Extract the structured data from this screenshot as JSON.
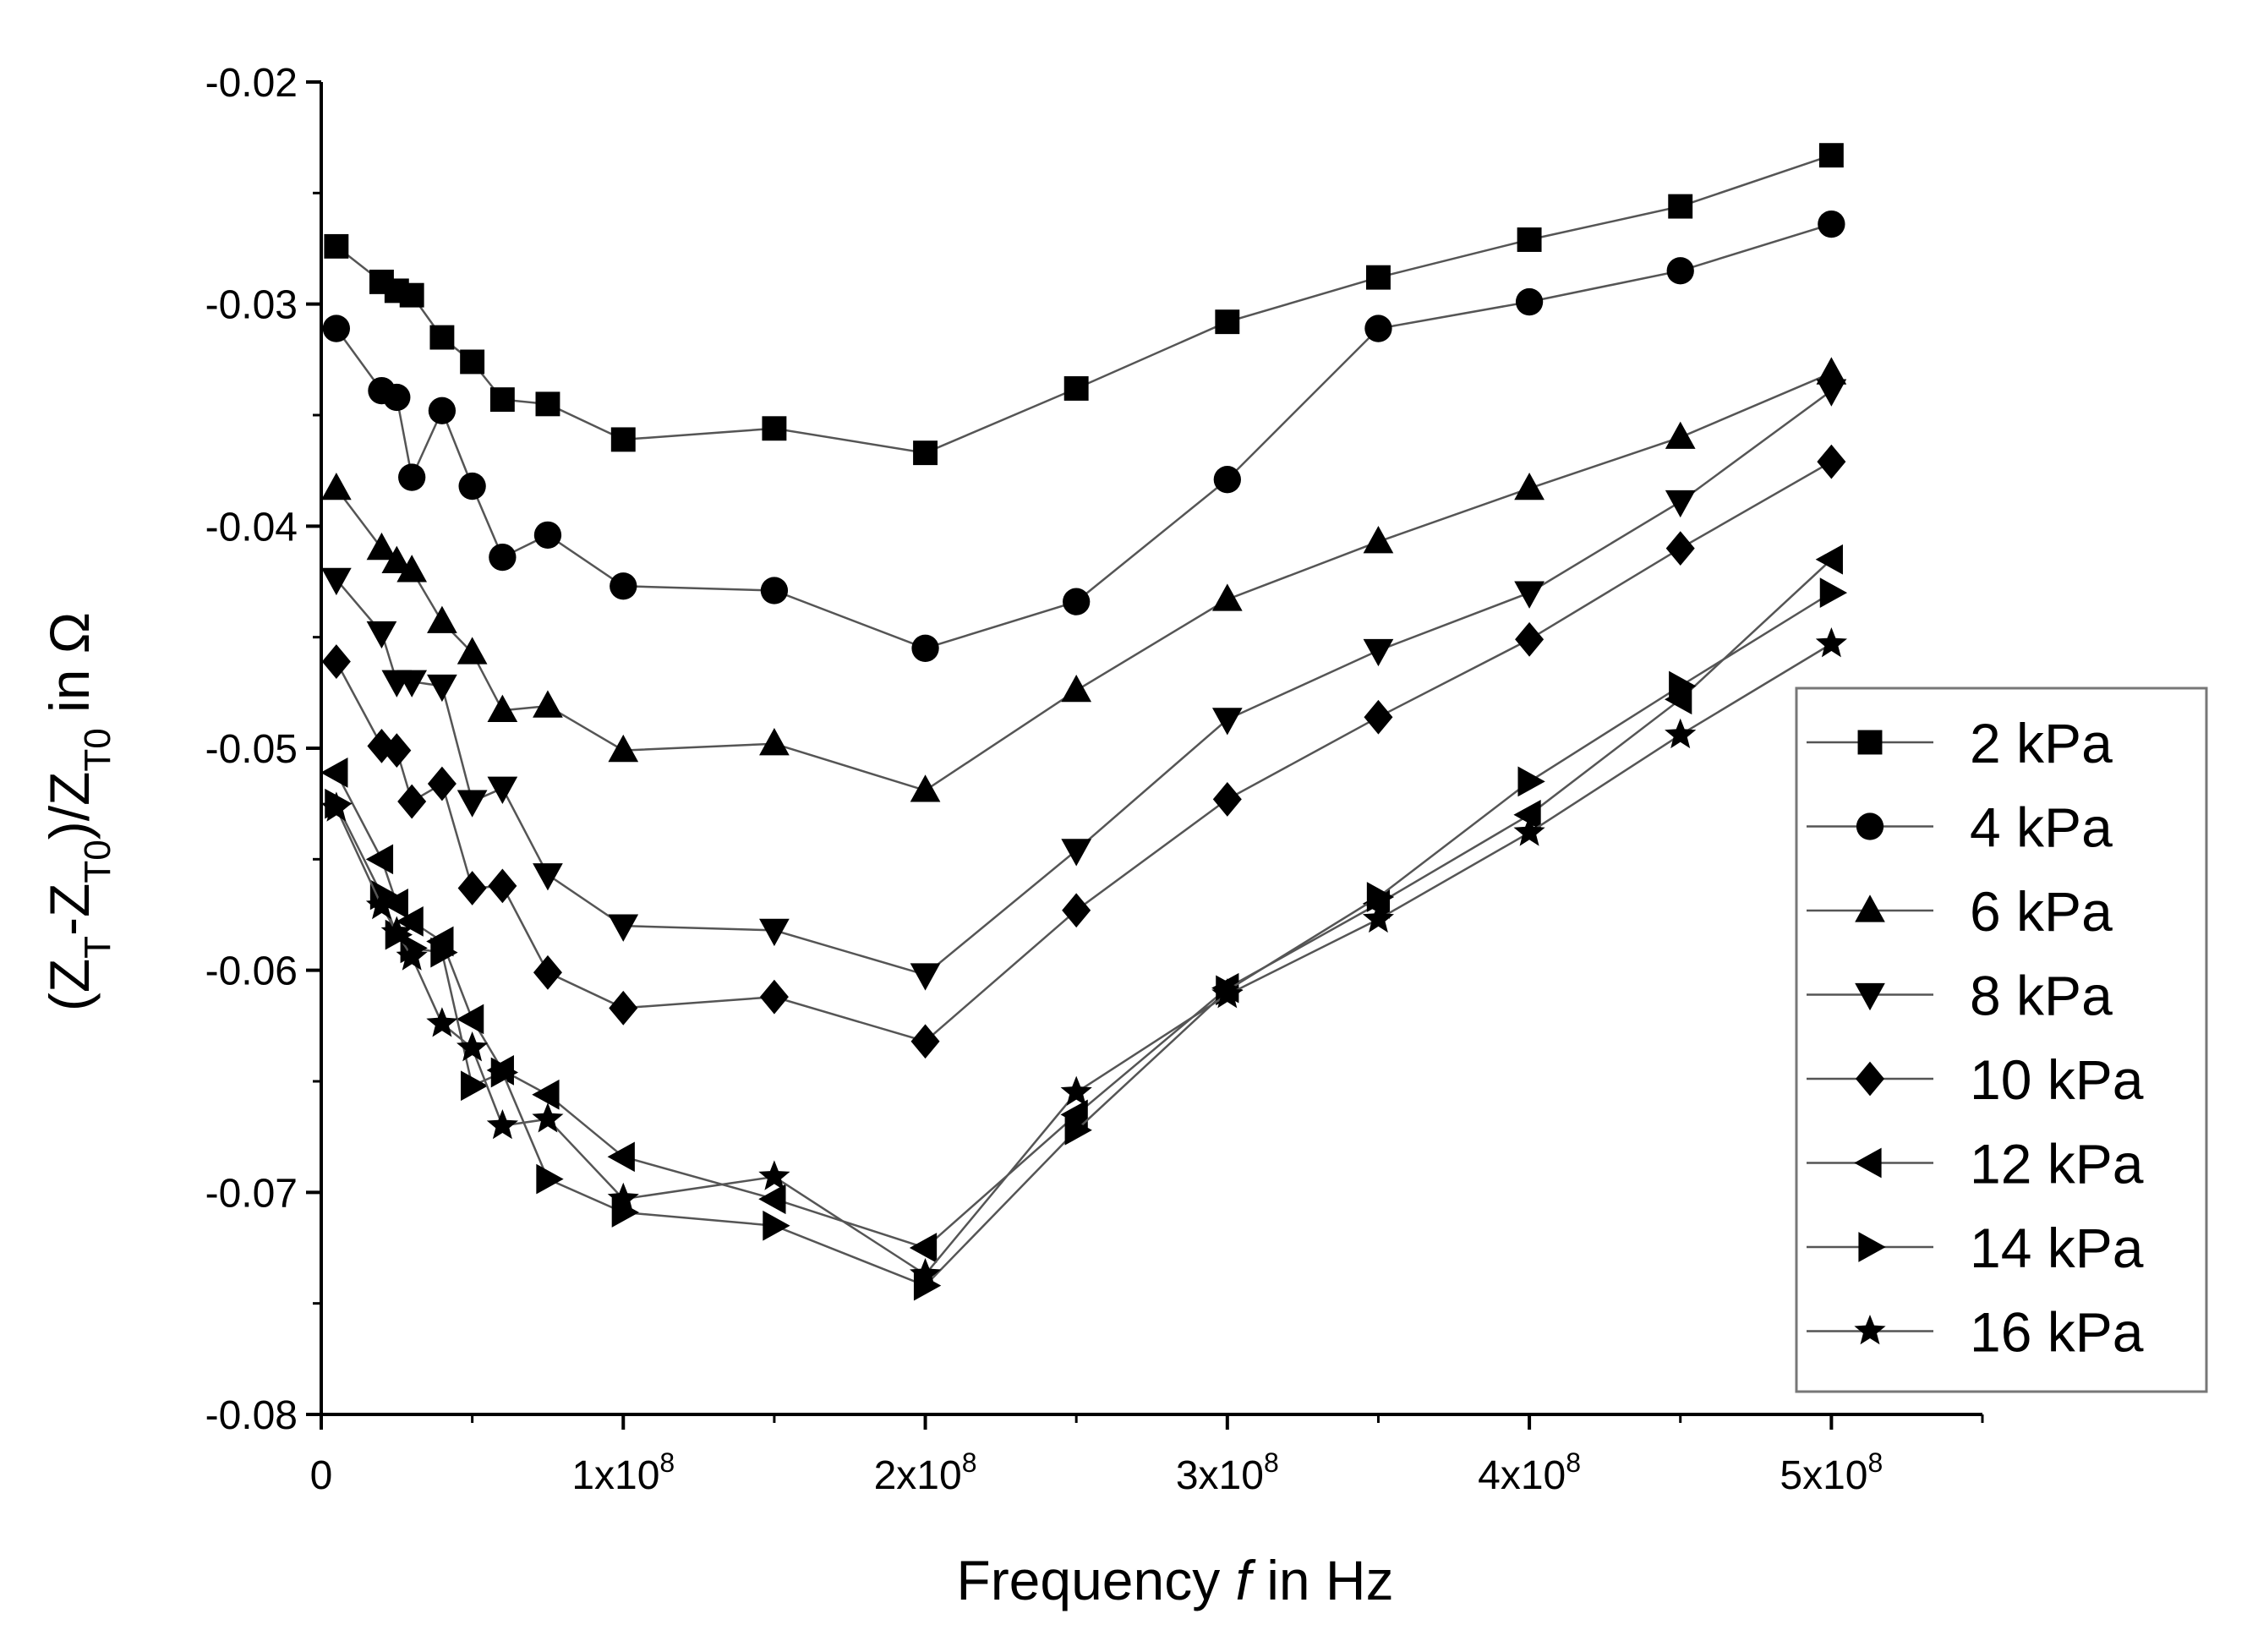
{
  "chart_data": {
    "type": "line",
    "title": "",
    "xlabel": {
      "main": "Frequency ",
      "italic": "f",
      "rest": " in Hz"
    },
    "ylabel": {
      "open": "(Z",
      "s1": "T",
      "mid": "-Z",
      "s2": "T0",
      "close": ")/Z",
      "s3": "T0",
      "tail": " in Ω"
    },
    "xlim": [
      0,
      550000000
    ],
    "ylim": [
      -0.08,
      -0.02
    ],
    "x_ticks": [
      {
        "value": 0,
        "mant": "0",
        "exp": ""
      },
      {
        "value": 100000000,
        "mant": "1x10",
        "exp": "8"
      },
      {
        "value": 200000000,
        "mant": "2x10",
        "exp": "8"
      },
      {
        "value": 300000000,
        "mant": "3x10",
        "exp": "8"
      },
      {
        "value": 400000000,
        "mant": "4x10",
        "exp": "8"
      },
      {
        "value": 500000000,
        "mant": "5x10",
        "exp": "8"
      }
    ],
    "y_ticks": [
      {
        "value": -0.02,
        "label": "-0.02"
      },
      {
        "value": -0.03,
        "label": "-0.03"
      },
      {
        "value": -0.04,
        "label": "-0.04"
      },
      {
        "value": -0.05,
        "label": "-0.05"
      },
      {
        "value": -0.06,
        "label": "-0.06"
      },
      {
        "value": -0.07,
        "label": "-0.07"
      },
      {
        "value": -0.08,
        "label": "-0.08"
      }
    ],
    "legend_position": "right",
    "x": [
      5000000,
      20000000,
      25000000,
      30000000,
      40000000,
      50000000,
      60000000,
      75000000,
      100000000,
      150000000,
      200000000,
      250000000,
      300000000,
      350000000,
      400000000,
      450000000,
      500000000
    ],
    "series": [
      {
        "name": "2 kPa",
        "marker": "square",
        "values": [
          -0.0274,
          -0.029,
          -0.0294,
          -0.0296,
          -0.0315,
          -0.0326,
          -0.0343,
          -0.0345,
          -0.0361,
          -0.0356,
          -0.0367,
          -0.0338,
          -0.0308,
          -0.0288,
          -0.0271,
          -0.0256,
          -0.0233
        ]
      },
      {
        "name": "4 kPa",
        "marker": "circle",
        "values": [
          -0.0311,
          -0.0339,
          -0.0342,
          -0.0378,
          -0.0348,
          -0.0382,
          -0.0414,
          -0.0404,
          -0.0427,
          -0.0429,
          -0.0455,
          -0.0434,
          -0.0379,
          -0.0311,
          -0.0299,
          -0.0285,
          -0.0264
        ]
      },
      {
        "name": "6 kPa",
        "marker": "triangle-up",
        "values": [
          -0.0383,
          -0.041,
          -0.0416,
          -0.042,
          -0.0443,
          -0.0457,
          -0.0483,
          -0.0481,
          -0.0501,
          -0.0498,
          -0.0519,
          -0.0474,
          -0.0433,
          -0.0407,
          -0.0383,
          -0.036,
          -0.0331
        ]
      },
      {
        "name": "8 kPa",
        "marker": "triangle-down",
        "values": [
          -0.0424,
          -0.0448,
          -0.047,
          -0.047,
          -0.0472,
          -0.0524,
          -0.0518,
          -0.0557,
          -0.058,
          -0.0582,
          -0.0602,
          -0.0546,
          -0.0487,
          -0.0456,
          -0.043,
          -0.0389,
          -0.0339
        ]
      },
      {
        "name": "10 kPa",
        "marker": "diamond",
        "values": [
          -0.0461,
          -0.0499,
          -0.0501,
          -0.0524,
          -0.0516,
          -0.0563,
          -0.0562,
          -0.0601,
          -0.0617,
          -0.0612,
          -0.0632,
          -0.0573,
          -0.0523,
          -0.0486,
          -0.0451,
          -0.041,
          -0.0371
        ]
      },
      {
        "name": "12 kPa",
        "marker": "triangle-left",
        "values": [
          -0.0511,
          -0.055,
          -0.057,
          -0.0578,
          -0.0587,
          -0.0622,
          -0.0645,
          -0.0656,
          -0.0684,
          -0.0703,
          -0.0725,
          -0.0665,
          -0.0608,
          -0.057,
          -0.053,
          -0.0478,
          -0.0415
        ]
      },
      {
        "name": "14 kPa",
        "marker": "triangle-right",
        "values": [
          -0.0525,
          -0.0566,
          -0.0584,
          -0.059,
          -0.0592,
          -0.0652,
          -0.0646,
          -0.0694,
          -0.0709,
          -0.0715,
          -0.0742,
          -0.0672,
          -0.0609,
          -0.0567,
          -0.0515,
          -0.0472,
          -0.043
        ]
      },
      {
        "name": "16 kPa",
        "marker": "star",
        "values": [
          -0.0527,
          -0.0571,
          -0.0583,
          -0.0594,
          -0.0624,
          -0.0635,
          -0.067,
          -0.0667,
          -0.0703,
          -0.0693,
          -0.0737,
          -0.0655,
          -0.0611,
          -0.0577,
          -0.0538,
          -0.0494,
          -0.0453
        ]
      }
    ]
  }
}
